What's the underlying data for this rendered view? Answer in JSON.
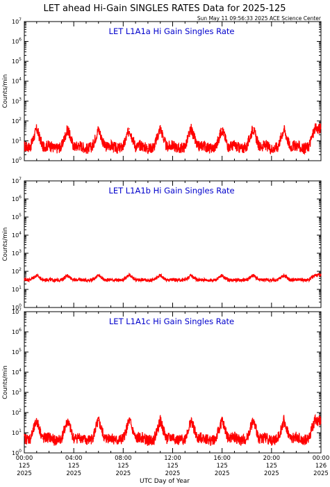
{
  "title": "LET ahead Hi-Gain SINGLES RATES Data for 2025-125",
  "timestamp": "Sun May 11 09:56:33 2025 ACE Science Center",
  "xlabel": "UTC Day of Year",
  "ylabel": "Counts/min",
  "x_ticks": [
    {
      "time": "00:00",
      "doy": "125",
      "year": "2025"
    },
    {
      "time": "04:00",
      "doy": "125",
      "year": "2025"
    },
    {
      "time": "08:00",
      "doy": "125",
      "year": "2025"
    },
    {
      "time": "12:00",
      "doy": "125",
      "year": "2025"
    },
    {
      "time": "16:00",
      "doy": "125",
      "year": "2025"
    },
    {
      "time": "20:00",
      "doy": "125",
      "year": "2025"
    },
    {
      "time": "00:00",
      "doy": "126",
      "year": "2025"
    }
  ],
  "y_tick_exponents": [
    "0",
    "1",
    "2",
    "3",
    "4",
    "5",
    "6",
    "7"
  ],
  "colors": {
    "trace": "#ff0000",
    "panel_title": "#0000cc",
    "axes": "#000000"
  },
  "chart_data": [
    {
      "type": "line",
      "title": "LET L1A1a Hi Gain Singles Rate",
      "xlabel": "",
      "ylabel": "Counts/min",
      "y_scale": "log",
      "ylim": [
        1,
        10000000
      ],
      "xlim": [
        "2025-125 00:00",
        "2025-126 00:00"
      ],
      "x_hours": [
        0.5,
        1.0,
        1.5,
        2.0,
        2.5,
        3.0,
        3.5,
        4.0,
        4.5,
        5.0,
        5.5,
        6.0,
        6.5,
        7.0,
        7.5,
        8.0,
        8.5,
        9.0,
        9.5,
        10.0,
        10.5,
        11.0,
        11.5,
        12.0,
        12.5,
        13.0,
        13.5,
        14.0,
        14.5,
        15.0,
        15.5,
        16.0,
        16.5,
        17.0,
        17.5,
        18.0,
        18.5,
        19.0,
        19.5,
        20.0,
        20.5,
        21.0,
        21.5,
        22.0,
        22.5,
        23.0,
        23.5
      ],
      "y": [
        5,
        40,
        5,
        6,
        4,
        5,
        40,
        5,
        6,
        4,
        5,
        40,
        5,
        6,
        4,
        5,
        40,
        5,
        6,
        4,
        5,
        45,
        5,
        6,
        4,
        5,
        40,
        5,
        6,
        4,
        5,
        40,
        5,
        6,
        4,
        5,
        45,
        5,
        6,
        4,
        5,
        40,
        5,
        6,
        4,
        5,
        40
      ],
      "series": [
        {
          "values_note_free": true
        }
      ]
    },
    {
      "type": "line",
      "title": "LET L1A1b Hi Gain Singles Rate",
      "xlabel": "",
      "ylabel": "Counts/min",
      "y_scale": "log",
      "ylim": [
        1,
        10000000
      ],
      "xlim": [
        "2025-125 00:00",
        "2025-126 00:00"
      ],
      "x_hours": [
        0.5,
        1.0,
        1.5,
        2.0,
        2.5,
        3.0,
        3.5,
        4.0,
        4.5,
        5.0,
        5.5,
        6.0,
        6.5,
        7.0,
        7.5,
        8.0,
        8.5,
        9.0,
        9.5,
        10.0,
        10.5,
        11.0,
        11.5,
        12.0,
        12.5,
        13.0,
        13.5,
        14.0,
        14.5,
        15.0,
        15.5,
        16.0,
        16.5,
        17.0,
        17.5,
        18.0,
        18.5,
        19.0,
        19.5,
        20.0,
        20.5,
        21.0,
        21.5,
        22.0,
        22.5,
        23.0,
        23.5
      ],
      "y": [
        35,
        60,
        33,
        35,
        32,
        34,
        60,
        33,
        35,
        32,
        34,
        60,
        33,
        35,
        32,
        34,
        60,
        33,
        35,
        32,
        34,
        60,
        33,
        35,
        32,
        34,
        60,
        33,
        35,
        32,
        34,
        60,
        33,
        35,
        32,
        34,
        60,
        33,
        35,
        32,
        34,
        60,
        33,
        35,
        32,
        34,
        60
      ]
    },
    {
      "type": "line",
      "title": "LET L1A1c Hi Gain Singles Rate",
      "xlabel": "UTC Day of Year",
      "ylabel": "Counts/min",
      "y_scale": "log",
      "ylim": [
        1,
        10000000
      ],
      "xlim": [
        "2025-125 00:00",
        "2025-126 00:00"
      ],
      "x_hours": [
        0.5,
        1.0,
        1.5,
        2.0,
        2.5,
        3.0,
        3.5,
        4.0,
        4.5,
        5.0,
        5.5,
        6.0,
        6.5,
        7.0,
        7.5,
        8.0,
        8.5,
        9.0,
        9.5,
        10.0,
        10.5,
        11.0,
        11.5,
        12.0,
        12.5,
        13.0,
        13.5,
        14.0,
        14.5,
        15.0,
        15.5,
        16.0,
        16.5,
        17.0,
        17.5,
        18.0,
        18.5,
        19.0,
        19.5,
        20.0,
        20.5,
        21.0,
        21.5,
        22.0,
        22.5,
        23.0,
        23.5
      ],
      "y": [
        5,
        40,
        5,
        6,
        4,
        5,
        40,
        5,
        6,
        4,
        5,
        40,
        5,
        6,
        4,
        5,
        40,
        5,
        6,
        4,
        5,
        40,
        5,
        6,
        4,
        5,
        40,
        5,
        6,
        4,
        5,
        40,
        5,
        6,
        4,
        5,
        40,
        5,
        6,
        4,
        5,
        40,
        5,
        6,
        4,
        5,
        40
      ]
    }
  ]
}
